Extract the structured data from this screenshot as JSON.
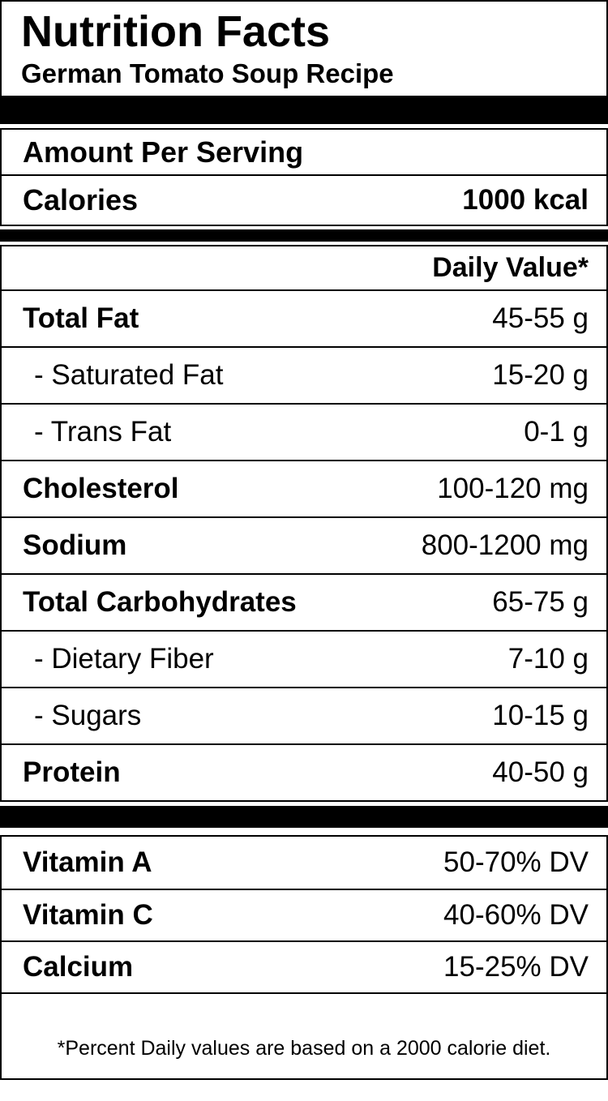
{
  "header": {
    "title": "Nutrition Facts",
    "subtitle": "German Tomato Soup Recipe"
  },
  "serving": {
    "heading": "Amount Per Serving",
    "calories_label": "Calories",
    "calories_value": "1000 kcal"
  },
  "daily_value_header": "Daily Value*",
  "nutrients": [
    {
      "name": "Total Fat",
      "value": "45-55 g"
    },
    {
      "name": "- Saturated Fat",
      "value": "15-20 g"
    },
    {
      "name": "- Trans Fat",
      "value": "0-1 g"
    },
    {
      "name": "Cholesterol",
      "value": "100-120 mg"
    },
    {
      "name": "Sodium",
      "value": "800-1200 mg"
    },
    {
      "name": "Total Carbohydrates",
      "value": "65-75 g"
    },
    {
      "name": "- Dietary Fiber",
      "value": "7-10 g"
    },
    {
      "name": "- Sugars",
      "value": "10-15 g"
    },
    {
      "name": "Protein",
      "value": "40-50 g"
    }
  ],
  "vitamins": [
    {
      "name": "Vitamin A",
      "value": "50-70% DV"
    },
    {
      "name": "Vitamin C",
      "value": "40-60% DV"
    },
    {
      "name": "Calcium",
      "value": "15-25% DV"
    }
  ],
  "footnote": "*Percent Daily values are based on a 2000 calorie diet.",
  "colors": {
    "text": "#000000",
    "background": "#ffffff",
    "divider": "#000000"
  }
}
